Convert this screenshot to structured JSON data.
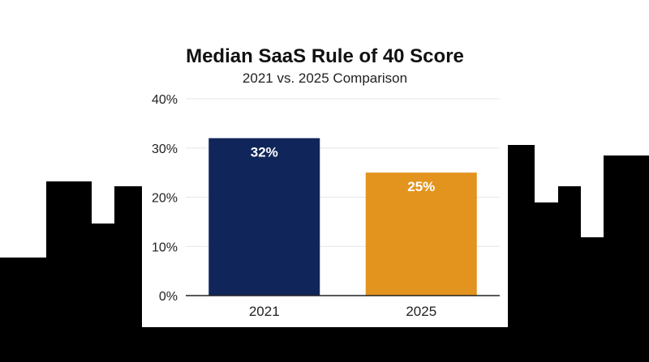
{
  "colors": {
    "bar_2021": "#10265a",
    "bar_2025": "#e3941f",
    "skyline": "#000000",
    "grid": "#e6e6e6",
    "axis": "#222222",
    "label_text": "#ffffff"
  },
  "chart_data": {
    "type": "bar",
    "title": "Median SaaS Rule of 40 Score",
    "subtitle": "2021 vs. 2025 Comparison",
    "categories": [
      "2021",
      "2025"
    ],
    "values": [
      32,
      25
    ],
    "data_labels": [
      "32%",
      "25%"
    ],
    "xlabel": "",
    "ylabel": "",
    "ylim": [
      0,
      40
    ],
    "yticks": [
      0,
      10,
      20,
      30,
      40
    ],
    "ytick_labels": [
      "0%",
      "10%",
      "20%",
      "30%",
      "40%"
    ],
    "grid": true,
    "legend": "none"
  }
}
